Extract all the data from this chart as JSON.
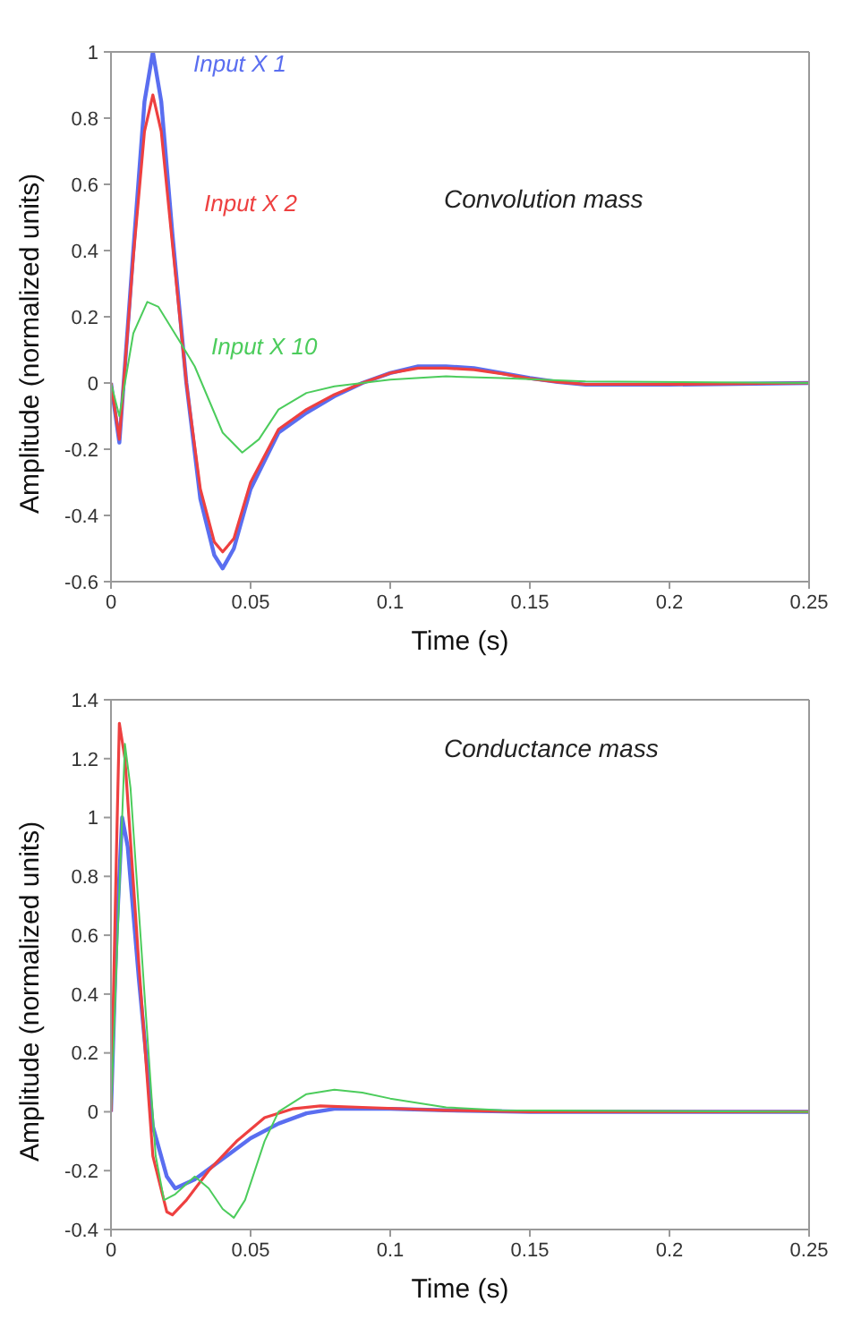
{
  "chart_data": [
    {
      "type": "line",
      "annotations": [
        "Convolution mass"
      ],
      "xlabel": "Time (s)",
      "ylabel": "Amplitude (normalized units)",
      "xlim": [
        0,
        0.25
      ],
      "xticks": [
        0,
        0.05,
        0.1,
        0.15,
        0.2,
        0.25
      ],
      "ylim": [
        -0.6,
        1
      ],
      "yticks": [
        -0.6,
        -0.4,
        -0.2,
        0,
        0.2,
        0.4,
        0.6,
        0.8,
        1
      ],
      "grid": false,
      "legend": false,
      "marker": "none",
      "line_style": "solid",
      "series": [
        {
          "name": "Input X 1",
          "color": "#5a6ef0",
          "x": [
            0,
            0.003,
            0.008,
            0.012,
            0.015,
            0.018,
            0.022,
            0.027,
            0.032,
            0.037,
            0.04,
            0.044,
            0.05,
            0.06,
            0.07,
            0.08,
            0.09,
            0.1,
            0.11,
            0.12,
            0.13,
            0.14,
            0.15,
            0.16,
            0.17,
            0.2,
            0.25
          ],
          "values": [
            0,
            -0.18,
            0.4,
            0.85,
            1.0,
            0.85,
            0.45,
            0.0,
            -0.35,
            -0.52,
            -0.56,
            -0.5,
            -0.32,
            -0.15,
            -0.09,
            -0.04,
            0.0,
            0.03,
            0.05,
            0.05,
            0.045,
            0.03,
            0.015,
            0.003,
            -0.005,
            -0.005,
            0
          ]
        },
        {
          "name": "Input X 2",
          "color": "#ee4040",
          "x": [
            0,
            0.003,
            0.008,
            0.012,
            0.015,
            0.018,
            0.022,
            0.027,
            0.032,
            0.037,
            0.04,
            0.044,
            0.05,
            0.06,
            0.07,
            0.08,
            0.09,
            0.1,
            0.11,
            0.12,
            0.13,
            0.14,
            0.15,
            0.16,
            0.17,
            0.2,
            0.25
          ],
          "values": [
            0,
            -0.17,
            0.38,
            0.76,
            0.87,
            0.76,
            0.42,
            0.0,
            -0.32,
            -0.48,
            -0.51,
            -0.47,
            -0.3,
            -0.14,
            -0.08,
            -0.035,
            0.0,
            0.03,
            0.045,
            0.045,
            0.04,
            0.028,
            0.013,
            0.003,
            -0.004,
            -0.004,
            0
          ]
        },
        {
          "name": "Input X 10",
          "color": "#4ccc5c",
          "x": [
            0,
            0.003,
            0.008,
            0.013,
            0.017,
            0.025,
            0.03,
            0.035,
            0.04,
            0.047,
            0.053,
            0.06,
            0.07,
            0.08,
            0.1,
            0.12,
            0.14,
            0.17,
            0.25
          ],
          "values": [
            0,
            -0.1,
            0.15,
            0.245,
            0.23,
            0.12,
            0.05,
            -0.05,
            -0.15,
            -0.21,
            -0.17,
            -0.08,
            -0.03,
            -0.01,
            0.01,
            0.02,
            0.015,
            0.005,
            0
          ]
        }
      ]
    },
    {
      "type": "line",
      "annotations": [
        "Conductance mass"
      ],
      "xlabel": "Time (s)",
      "ylabel": "Amplitude (normalized units)",
      "xlim": [
        0,
        0.25
      ],
      "xticks": [
        0,
        0.05,
        0.1,
        0.15,
        0.2,
        0.25
      ],
      "ylim": [
        -0.4,
        1.4
      ],
      "yticks": [
        -0.4,
        -0.2,
        0,
        0.2,
        0.4,
        0.6,
        0.8,
        1,
        1.2,
        1.4
      ],
      "grid": false,
      "legend": false,
      "marker": "none",
      "line_style": "solid",
      "series": [
        {
          "color": "#5a6ef0",
          "x": [
            0,
            0.002,
            0.004,
            0.006,
            0.01,
            0.015,
            0.02,
            0.023,
            0.03,
            0.04,
            0.05,
            0.06,
            0.07,
            0.08,
            0.1,
            0.12,
            0.15,
            0.25
          ],
          "values": [
            0,
            0.6,
            1.0,
            0.9,
            0.45,
            -0.05,
            -0.22,
            -0.26,
            -0.23,
            -0.16,
            -0.09,
            -0.04,
            -0.005,
            0.01,
            0.01,
            0.005,
            0,
            0
          ]
        },
        {
          "color": "#ee4040",
          "x": [
            0,
            0.002,
            0.003,
            0.005,
            0.01,
            0.015,
            0.02,
            0.022,
            0.027,
            0.035,
            0.045,
            0.055,
            0.065,
            0.075,
            0.09,
            0.12,
            0.15,
            0.25
          ],
          "values": [
            0,
            0.9,
            1.32,
            1.2,
            0.5,
            -0.15,
            -0.34,
            -0.35,
            -0.3,
            -0.2,
            -0.1,
            -0.02,
            0.01,
            0.02,
            0.015,
            0.005,
            0,
            0
          ]
        },
        {
          "color": "#4ccc5c",
          "x": [
            0,
            0.002,
            0.005,
            0.007,
            0.012,
            0.016,
            0.019,
            0.023,
            0.03,
            0.035,
            0.04,
            0.044,
            0.048,
            0.055,
            0.06,
            0.07,
            0.08,
            0.09,
            0.1,
            0.12,
            0.14,
            0.25
          ],
          "values": [
            0,
            0.5,
            1.25,
            1.1,
            0.4,
            -0.15,
            -0.3,
            -0.28,
            -0.22,
            -0.26,
            -0.33,
            -0.36,
            -0.3,
            -0.1,
            0.0,
            0.06,
            0.075,
            0.065,
            0.045,
            0.015,
            0.005,
            0
          ]
        }
      ]
    }
  ]
}
